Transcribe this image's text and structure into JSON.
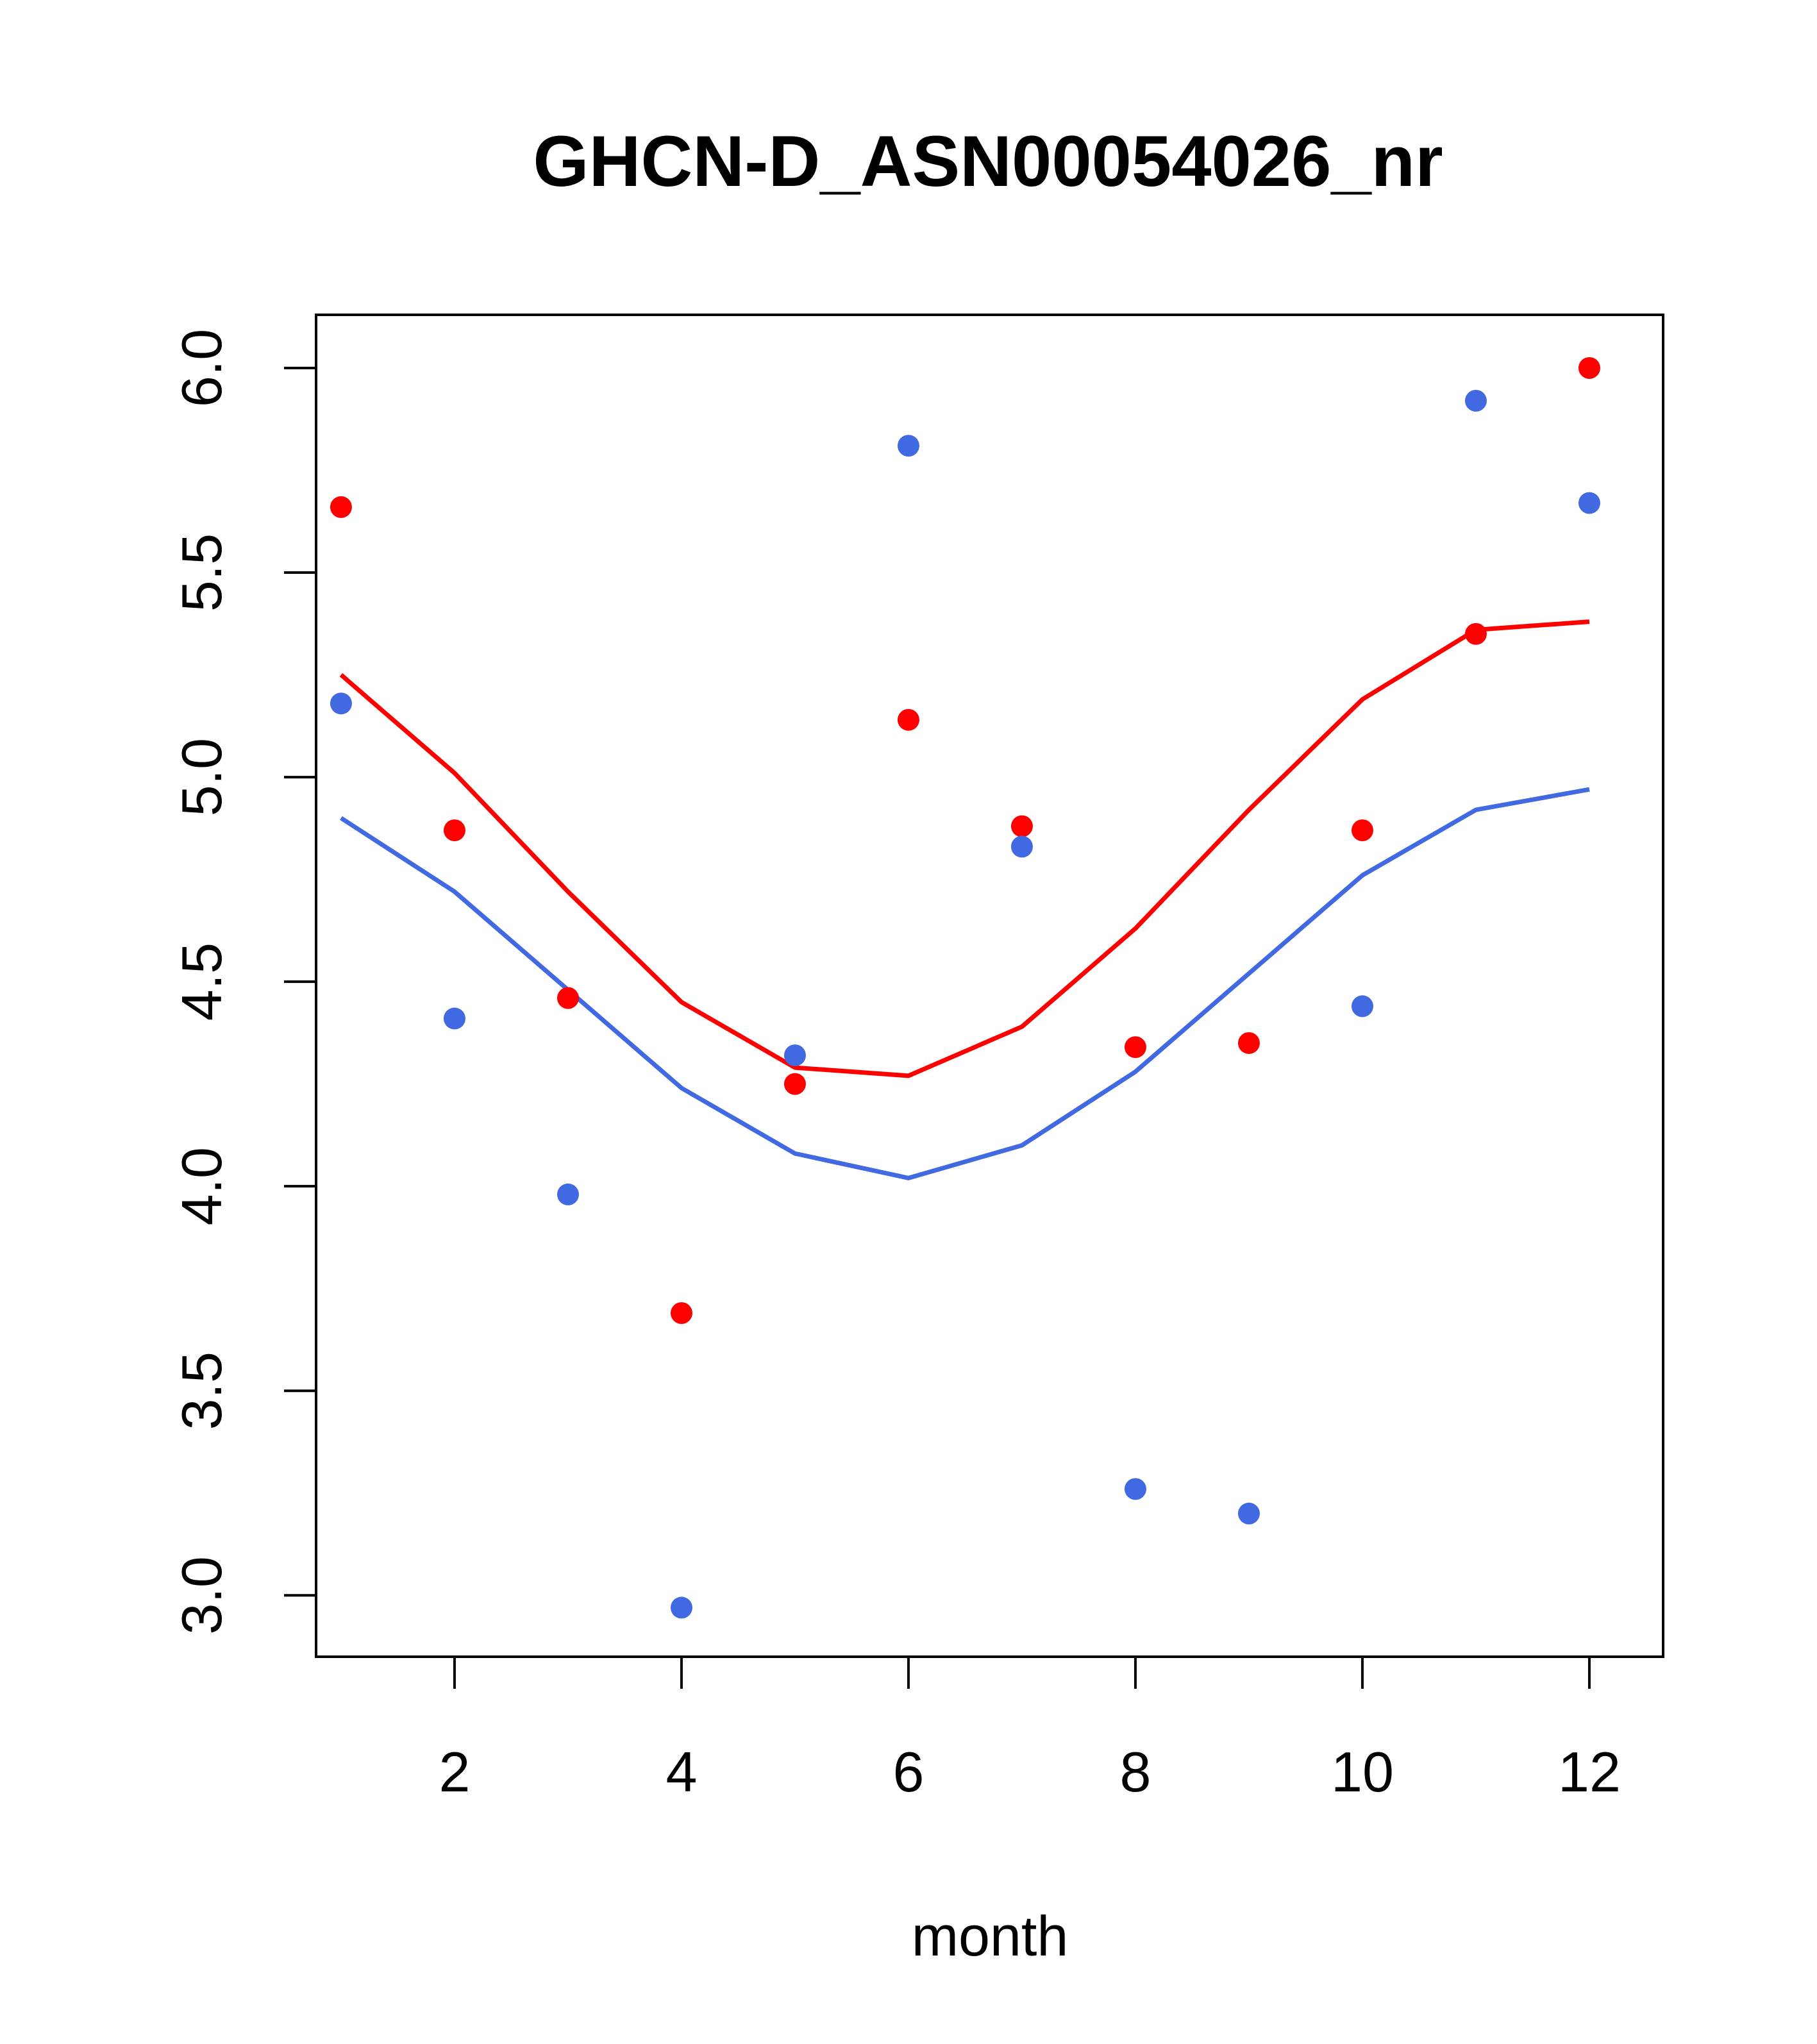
{
  "chart_data": {
    "type": "scatter",
    "title": "GHCN-D_ASN00054026_nr",
    "xlabel": "month",
    "ylabel": "",
    "xlim": [
      0.78,
      12.65
    ],
    "ylim": [
      2.85,
      6.13
    ],
    "xticks": [
      2,
      4,
      6,
      8,
      10,
      12
    ],
    "xtick_labels": [
      "2",
      "4",
      "6",
      "8",
      "10",
      "12"
    ],
    "yticks": [
      3.0,
      3.5,
      4.0,
      4.5,
      5.0,
      5.5,
      6.0
    ],
    "ytick_labels": [
      "3.0",
      "3.5",
      "4.0",
      "4.5",
      "5.0",
      "5.5",
      "6.0"
    ],
    "grid": false,
    "x": [
      1,
      2,
      3,
      4,
      5,
      6,
      7,
      8,
      9,
      10,
      11,
      12
    ],
    "series": [
      {
        "name": "red points",
        "kind": "points",
        "color": "#ff0000",
        "values": [
          5.66,
          4.87,
          4.46,
          3.69,
          4.25,
          5.14,
          4.88,
          4.34,
          4.35,
          4.87,
          5.35,
          6.0
        ]
      },
      {
        "name": "blue points",
        "kind": "points",
        "color": "#4169e1",
        "values": [
          5.18,
          4.41,
          3.98,
          2.97,
          4.32,
          5.81,
          4.83,
          3.26,
          3.2,
          4.44,
          5.92,
          5.67
        ]
      },
      {
        "name": "red line",
        "kind": "line",
        "color": "#ff0000",
        "values": [
          5.25,
          5.01,
          4.72,
          4.45,
          4.29,
          4.27,
          4.39,
          4.63,
          4.92,
          5.19,
          5.36,
          5.38
        ]
      },
      {
        "name": "blue line",
        "kind": "line",
        "color": "#4169e1",
        "values": [
          4.9,
          4.72,
          4.48,
          4.24,
          4.08,
          4.02,
          4.1,
          4.28,
          4.52,
          4.76,
          4.92,
          4.97
        ]
      }
    ]
  }
}
